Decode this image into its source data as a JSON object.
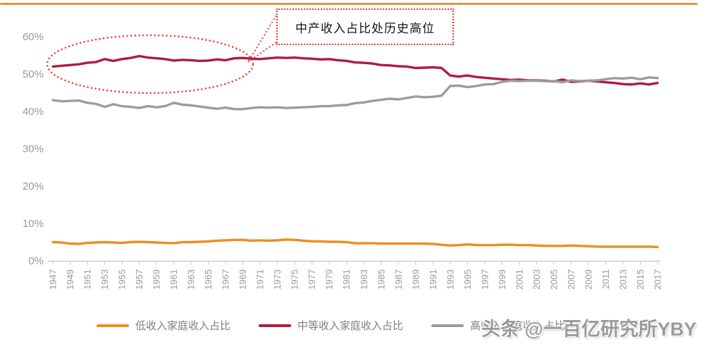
{
  "page": {
    "top_rule_color": "#e9953c",
    "background": "#ffffff"
  },
  "annotation": {
    "label": "中产收入占比处历史高位",
    "border_color": "#ee3b33"
  },
  "watermark": {
    "text": "头条 @一百亿研究所YBY",
    "color": "#9b9b9b"
  },
  "legend": {
    "position": "bottom"
  },
  "chart_data": {
    "type": "line",
    "title": "",
    "xlabel": "",
    "ylabel": "",
    "grid": false,
    "legend_position": "bottom",
    "ylim": [
      0,
      65
    ],
    "y_ticks": [
      "0%",
      "10%",
      "20%",
      "30%",
      "40%",
      "50%",
      "60%"
    ],
    "x_start": 1947,
    "x_end": 2017,
    "x_tick_labels": [
      "1947",
      "1949",
      "1951",
      "1953",
      "1955",
      "1957",
      "1959",
      "1961",
      "1963",
      "1965",
      "1967",
      "1969",
      "1971",
      "1973",
      "1975",
      "1977",
      "1979",
      "1981",
      "1983",
      "1985",
      "1987",
      "1989",
      "1991",
      "1993",
      "1995",
      "1997",
      "1999",
      "2001",
      "2003",
      "2005",
      "2007",
      "2009",
      "2011",
      "2013",
      "2015",
      "2017"
    ],
    "series": [
      {
        "name": "低收入家庭收入占比",
        "color": "#ed8e1e",
        "values": [
          5.0,
          4.9,
          4.6,
          4.5,
          4.8,
          4.9,
          5.0,
          4.9,
          4.8,
          5.0,
          5.1,
          5.0,
          4.9,
          4.8,
          4.7,
          5.0,
          5.0,
          5.1,
          5.2,
          5.4,
          5.5,
          5.6,
          5.6,
          5.4,
          5.5,
          5.4,
          5.5,
          5.7,
          5.6,
          5.4,
          5.2,
          5.2,
          5.1,
          5.1,
          5.0,
          4.7,
          4.7,
          4.7,
          4.6,
          4.6,
          4.6,
          4.6,
          4.6,
          4.6,
          4.5,
          4.3,
          4.1,
          4.2,
          4.4,
          4.2,
          4.2,
          4.2,
          4.3,
          4.3,
          4.2,
          4.2,
          4.1,
          4.0,
          4.0,
          4.0,
          4.1,
          4.0,
          3.9,
          3.8,
          3.8,
          3.8,
          3.8,
          3.8,
          3.8,
          3.8,
          3.7
        ]
      },
      {
        "name": "中等收入家庭收入占比",
        "color": "#ae1c3f",
        "values": [
          52.0,
          52.2,
          52.4,
          52.6,
          53.0,
          53.2,
          54.0,
          53.5,
          54.0,
          54.3,
          54.8,
          54.4,
          54.2,
          54.0,
          53.6,
          53.8,
          53.7,
          53.5,
          53.6,
          53.9,
          53.7,
          54.2,
          54.3,
          54.1,
          54.0,
          54.2,
          54.4,
          54.3,
          54.4,
          54.2,
          54.1,
          53.9,
          54.0,
          53.7,
          53.5,
          53.1,
          53.0,
          52.8,
          52.4,
          52.3,
          52.1,
          52.0,
          51.6,
          51.7,
          51.8,
          51.6,
          49.6,
          49.3,
          49.6,
          49.2,
          49.0,
          48.8,
          48.6,
          48.4,
          48.5,
          48.3,
          48.3,
          48.2,
          48.0,
          48.5,
          47.9,
          48.0,
          48.2,
          48.0,
          47.8,
          47.6,
          47.3,
          47.2,
          47.5,
          47.2,
          47.6
        ]
      },
      {
        "name": "高收入家庭收入占比",
        "color": "#9c9c9c",
        "values": [
          43.0,
          42.7,
          42.8,
          42.9,
          42.3,
          42.0,
          41.2,
          41.9,
          41.4,
          41.2,
          40.9,
          41.4,
          41.1,
          41.4,
          42.3,
          41.8,
          41.6,
          41.3,
          41.0,
          40.7,
          41.0,
          40.6,
          40.6,
          40.9,
          41.1,
          41.0,
          41.1,
          40.9,
          41.0,
          41.1,
          41.2,
          41.4,
          41.4,
          41.6,
          41.7,
          42.2,
          42.4,
          42.8,
          43.1,
          43.4,
          43.2,
          43.6,
          44.0,
          43.8,
          43.9,
          44.2,
          46.8,
          46.9,
          46.5,
          46.8,
          47.2,
          47.3,
          47.9,
          48.2,
          48.1,
          48.2,
          48.2,
          48.1,
          48.1,
          47.8,
          48.3,
          48.1,
          48.2,
          48.3,
          48.6,
          48.9,
          48.8,
          49.0,
          48.6,
          49.1,
          48.9
        ]
      }
    ],
    "annotations": [
      {
        "type": "callout-ellipse",
        "text": "中产收入占比处历史高位",
        "ellipse_x_year_range": [
          1947,
          1970
        ],
        "ellipse_y_center_pct": 52.5
      }
    ]
  }
}
